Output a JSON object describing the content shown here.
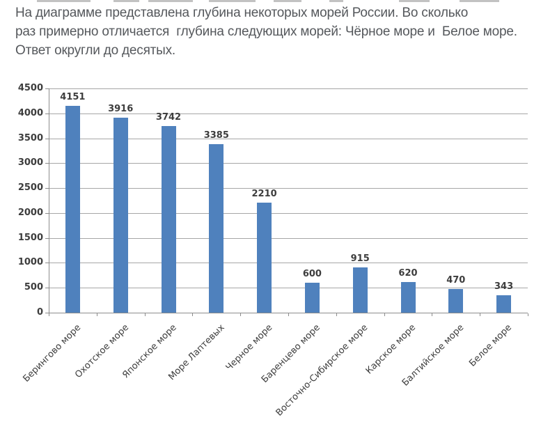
{
  "question": {
    "lines": [
      "На диаграмме представлена глубина некоторых морей России. Во сколько",
      "раз примерно отличается  глубина следующих морей: Чёрное море и  Белое море.",
      "Ответ округли до десятых."
    ]
  },
  "chart_data": {
    "type": "bar",
    "title": "",
    "xlabel": "",
    "ylabel": "",
    "categories": [
      "Берингово море",
      "Охотское море",
      "Японское море",
      "Море Лаптевых",
      "Черное море",
      "Баренцево море",
      "Восточно-Сибирское море",
      "Карское море",
      "Балтийское море",
      "Белое море"
    ],
    "values": [
      4151,
      3916,
      3742,
      3385,
      2210,
      600,
      915,
      620,
      470,
      343
    ],
    "ylim": [
      0,
      4500
    ],
    "ytick_step": 500,
    "yticks": [
      0,
      500,
      1000,
      1500,
      2000,
      2500,
      3000,
      3500,
      4000,
      4500
    ],
    "grid": true,
    "legend": "none",
    "bar_color": "#4f81bd",
    "gridline_color": "#a6a6a6",
    "axis_color": "#8c8c8c",
    "label_color": "#3d3d3d"
  },
  "decor": {
    "top_cut_text_segments": [
      [
        53,
        77
      ],
      [
        163,
        37
      ],
      [
        213,
        64
      ],
      [
        300,
        67
      ],
      [
        393,
        40
      ],
      [
        473,
        20
      ],
      [
        573,
        44
      ],
      [
        660,
        57
      ]
    ],
    "segment_color": "#c2c2c2"
  }
}
